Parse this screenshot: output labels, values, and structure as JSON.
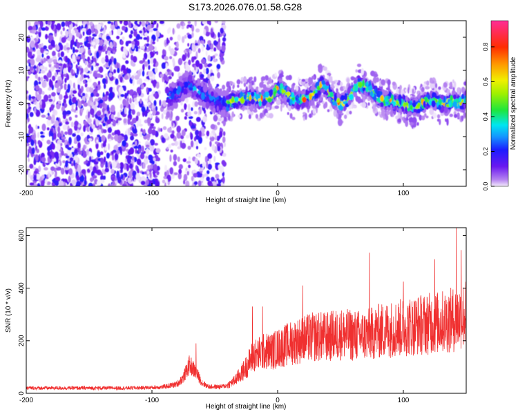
{
  "title": "S173.2026.076.01.58.G28",
  "chart_data": [
    {
      "type": "heatmap",
      "title": "S173.2026.076.01.58.G28",
      "xlabel": "Height of straight line (km)",
      "ylabel": "Frequency (Hz)",
      "xlim": [
        -200,
        150
      ],
      "ylim": [
        -25,
        25
      ],
      "xticks": [
        -200,
        -100,
        0,
        100
      ],
      "yticks": [
        -20,
        -10,
        0,
        10,
        20
      ],
      "colorbar": {
        "label": "Normalized spectral amplitude",
        "range": [
          0,
          0.95
        ],
        "ticks": [
          0.0,
          0.2,
          0.4,
          0.6,
          0.8
        ]
      },
      "signal_track": {
        "x": [
          -85,
          -80,
          -75,
          -70,
          -65,
          -60,
          -55,
          -50,
          -45,
          -40,
          -35,
          -30,
          -25,
          -20,
          -15,
          -10,
          -5,
          0,
          5,
          10,
          15,
          20,
          25,
          30,
          35,
          40,
          45,
          50,
          55,
          60,
          65,
          70,
          75,
          80,
          85,
          90,
          95,
          100,
          105,
          110,
          115,
          120,
          125,
          130,
          135,
          140,
          145,
          150
        ],
        "freq": [
          2,
          3,
          5,
          6,
          4,
          3,
          2,
          1,
          0,
          0,
          1,
          1,
          2,
          2,
          1,
          2,
          2,
          5,
          4,
          2,
          1,
          1,
          2,
          3,
          6,
          4,
          1,
          0,
          1,
          4,
          6,
          5,
          4,
          2,
          1,
          1,
          0,
          0,
          -1,
          -1,
          0,
          1,
          1,
          0,
          0,
          1,
          0,
          1
        ]
      }
    },
    {
      "type": "line",
      "xlabel": "Height of straight line (km)",
      "ylabel": "SNR (10 * v/v)",
      "xlim": [
        -200,
        150
      ],
      "ylim": [
        0,
        630
      ],
      "xticks": [
        -200,
        -100,
        0,
        100
      ],
      "yticks": [
        0,
        200,
        400,
        600
      ],
      "series": [
        {
          "name": "SNR",
          "color": "#f03030",
          "x": [
            -200,
            -180,
            -160,
            -140,
            -120,
            -100,
            -90,
            -80,
            -75,
            -70,
            -65,
            -60,
            -55,
            -50,
            -45,
            -40,
            -35,
            -30,
            -25,
            -20,
            -15,
            -10,
            -5,
            0,
            10,
            20,
            30,
            40,
            50,
            60,
            70,
            80,
            90,
            100,
            110,
            120,
            130,
            140,
            150
          ],
          "y": [
            20,
            20,
            20,
            20,
            20,
            22,
            25,
            35,
            60,
            110,
            80,
            40,
            25,
            25,
            25,
            30,
            45,
            70,
            100,
            140,
            150,
            160,
            160,
            170,
            190,
            205,
            215,
            215,
            225,
            220,
            220,
            235,
            245,
            250,
            260,
            265,
            270,
            280,
            300
          ],
          "spikes": [
            {
              "x": -65,
              "y": 190
            },
            {
              "x": -20,
              "y": 330
            },
            {
              "x": -12,
              "y": 330
            },
            {
              "x": 20,
              "y": 410
            },
            {
              "x": 73,
              "y": 535
            },
            {
              "x": 100,
              "y": 425
            },
            {
              "x": 125,
              "y": 510
            },
            {
              "x": 142,
              "y": 630
            },
            {
              "x": 146,
              "y": 545
            }
          ]
        }
      ]
    }
  ]
}
